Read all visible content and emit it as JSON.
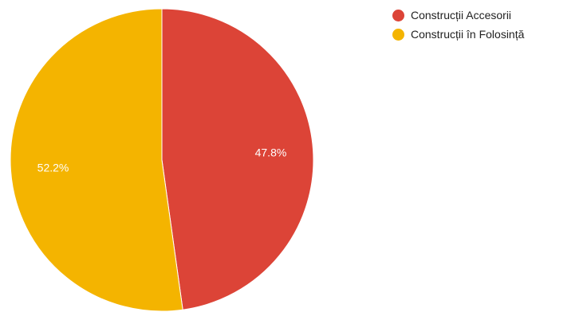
{
  "chart_data": {
    "type": "pie",
    "series": [
      {
        "name": "Construcții Accesorii",
        "value": 47.8,
        "label": "47.8%",
        "color": "#dc4437"
      },
      {
        "name": "Construcții în Folosință",
        "value": 52.2,
        "label": "52.2%",
        "color": "#f4b400"
      }
    ],
    "legend_position": "top-right",
    "start_angle": "12 o'clock",
    "direction": "clockwise"
  }
}
